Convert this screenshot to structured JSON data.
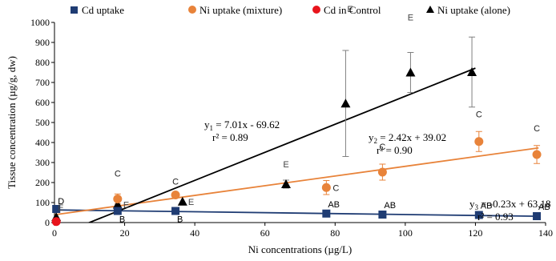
{
  "chart_data": {
    "type": "scatter",
    "xlabel": "Ni concentrations (µg/L)",
    "ylabel": "Tissue concentration (µg/g, dw)",
    "xlim": [
      0,
      140
    ],
    "ylim": [
      0,
      1000
    ],
    "x_ticks": [
      0,
      20,
      40,
      60,
      80,
      100,
      120,
      140
    ],
    "y_ticks": [
      0,
      100,
      200,
      300,
      400,
      500,
      600,
      700,
      800,
      900,
      1000
    ],
    "grid": false,
    "legend_position": "top",
    "series": [
      {
        "name": "Cd uptake",
        "color": "#1f3c73",
        "marker": "square",
        "points": [
          {
            "x": 0.5,
            "y": 68,
            "label": "D"
          },
          {
            "x": 18,
            "y": 58,
            "label": "B"
          },
          {
            "x": 34.5,
            "y": 58,
            "label": "B"
          },
          {
            "x": 77.5,
            "y": 45,
            "label": "AB"
          },
          {
            "x": 93.5,
            "y": 40,
            "label": "AB"
          },
          {
            "x": 121,
            "y": 38,
            "label": "AB"
          },
          {
            "x": 137.5,
            "y": 32,
            "label": "AB"
          }
        ],
        "trendline": {
          "slope": -0.23,
          "intercept": 63.18,
          "x_range": [
            0,
            138
          ]
        }
      },
      {
        "name": "Ni uptake (mixture)",
        "color": "#e8833a",
        "marker": "circle",
        "points": [
          {
            "x": 18,
            "y": 118,
            "err": 25,
            "label": "C"
          },
          {
            "x": 34.5,
            "y": 138,
            "err": 12,
            "label": "C"
          },
          {
            "x": 77.5,
            "y": 175,
            "err": 35,
            "label": "C"
          },
          {
            "x": 93.5,
            "y": 252,
            "err": 40,
            "label": "C"
          },
          {
            "x": 121,
            "y": 405,
            "err": 50,
            "label": "C"
          },
          {
            "x": 137.5,
            "y": 340,
            "err": 45,
            "label": "C"
          }
        ],
        "trendline": {
          "slope": 2.42,
          "intercept": 39.02,
          "x_range": [
            0,
            138
          ]
        }
      },
      {
        "name": "Cd in Control",
        "color": "#e8141c",
        "marker": "circle",
        "points": [
          {
            "x": 0.5,
            "y": 5
          }
        ]
      },
      {
        "name": "Ni uptake (alone)",
        "color": "#000000",
        "marker": "triangle",
        "points": [
          {
            "x": 0.5,
            "y": 28,
            "label": "E"
          },
          {
            "x": 18,
            "y": 90,
            "label": "E"
          },
          {
            "x": 36.5,
            "y": 105,
            "label": "E"
          },
          {
            "x": 66,
            "y": 192,
            "err": 20,
            "label": "E"
          },
          {
            "x": 83,
            "y": 595,
            "err": 265,
            "label": "E"
          },
          {
            "x": 101.5,
            "y": 750,
            "err": 100,
            "label": "E"
          },
          {
            "x": 119,
            "y": 752,
            "err": 175,
            "label": "E"
          }
        ],
        "trendline": {
          "slope": 7.01,
          "intercept": -69.62,
          "x_range": [
            0,
            120
          ]
        }
      }
    ],
    "annotations": [
      {
        "id": "eq1",
        "line1": "y1 = 7.01x - 69.62",
        "line2": "r² = 0.89"
      },
      {
        "id": "eq2",
        "line1": "y2 = 2.42x + 39.02",
        "line2": "r² = 0.90"
      },
      {
        "id": "eq3",
        "line1": "y3 = -0.23x + 63.18",
        "line2": "r² = 0.93"
      }
    ]
  }
}
